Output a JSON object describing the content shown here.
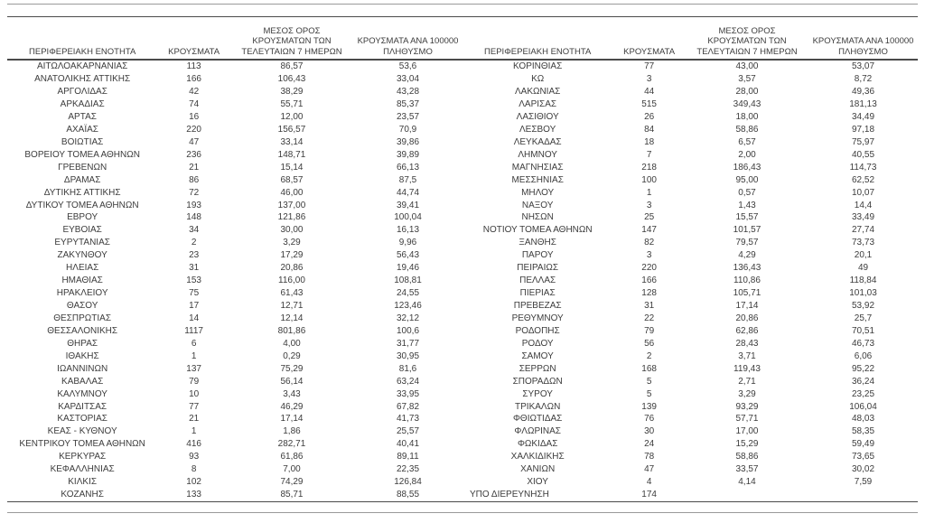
{
  "colors": {
    "text": "#3c3c3c",
    "border": "#4a4a4a",
    "rule": "#9a9a9a",
    "bg": "#ffffff"
  },
  "columns": [
    {
      "id": "region",
      "label": "ΠΕΡΙΦΕΡΕΙΑΚΗ ΕΝΟΤΗΤΑ"
    },
    {
      "id": "cases",
      "label": "ΚΡΟΥΣΜΑΤΑ"
    },
    {
      "id": "avg7",
      "label": "ΜΕΣΟΣ ΟΡΟΣ\nΚΡΟΥΣΜΑΤΩΝ ΤΩΝ\nΤΕΛΕΥΤΑΙΩΝ 7 ΗΜΕΡΩΝ"
    },
    {
      "id": "per100k",
      "label": "ΚΡΟΥΣΜΑΤΑ ΑΝΑ 100000\nΠΛΗΘΥΣΜΟ"
    }
  ],
  "tables": [
    {
      "rows": [
        [
          "ΑΙΤΩΛΟΑΚΑΡΝΑΝΙΑΣ",
          "113",
          "86,57",
          "53,6"
        ],
        [
          "ΑΝΑΤΟΛΙΚΗΣ ΑΤΤΙΚΗΣ",
          "166",
          "106,43",
          "33,04"
        ],
        [
          "ΑΡΓΟΛΙΔΑΣ",
          "42",
          "38,29",
          "43,28"
        ],
        [
          "ΑΡΚΑΔΙΑΣ",
          "74",
          "55,71",
          "85,37"
        ],
        [
          "ΑΡΤΑΣ",
          "16",
          "12,00",
          "23,57"
        ],
        [
          "ΑΧΑΪΑΣ",
          "220",
          "156,57",
          "70,9"
        ],
        [
          "ΒΟΙΩΤΙΑΣ",
          "47",
          "33,14",
          "39,86"
        ],
        [
          "ΒΟΡΕΙΟΥ ΤΟΜΕΑ ΑΘΗΝΩΝ",
          "236",
          "148,71",
          "39,89"
        ],
        [
          "ΓΡΕΒΕΝΩΝ",
          "21",
          "15,14",
          "66,13"
        ],
        [
          "ΔΡΑΜΑΣ",
          "86",
          "68,57",
          "87,5"
        ],
        [
          "ΔΥΤΙΚΗΣ ΑΤΤΙΚΗΣ",
          "72",
          "46,00",
          "44,74"
        ],
        [
          "ΔΥΤΙΚΟΥ ΤΟΜΕΑ ΑΘΗΝΩΝ",
          "193",
          "137,00",
          "39,41"
        ],
        [
          "ΕΒΡΟΥ",
          "148",
          "121,86",
          "100,04"
        ],
        [
          "ΕΥΒΟΙΑΣ",
          "34",
          "30,00",
          "16,13"
        ],
        [
          "ΕΥΡΥΤΑΝΙΑΣ",
          "2",
          "3,29",
          "9,96"
        ],
        [
          "ΖΑΚΥΝΘΟΥ",
          "23",
          "17,29",
          "56,43"
        ],
        [
          "ΗΛΕΙΑΣ",
          "31",
          "20,86",
          "19,46"
        ],
        [
          "ΗΜΑΘΙΑΣ",
          "153",
          "116,00",
          "108,81"
        ],
        [
          "ΗΡΑΚΛΕΙΟΥ",
          "75",
          "61,43",
          "24,55"
        ],
        [
          "ΘΑΣΟΥ",
          "17",
          "12,71",
          "123,46"
        ],
        [
          "ΘΕΣΠΡΩΤΙΑΣ",
          "14",
          "12,14",
          "32,12"
        ],
        [
          "ΘΕΣΣΑΛΟΝΙΚΗΣ",
          "1117",
          "801,86",
          "100,6"
        ],
        [
          "ΘΗΡΑΣ",
          "6",
          "4,00",
          "31,77"
        ],
        [
          "ΙΘΑΚΗΣ",
          "1",
          "0,29",
          "30,95"
        ],
        [
          "ΙΩΑΝΝΙΝΩΝ",
          "137",
          "75,29",
          "81,6"
        ],
        [
          "ΚΑΒΑΛΑΣ",
          "79",
          "56,14",
          "63,24"
        ],
        [
          "ΚΑΛΥΜΝΟΥ",
          "10",
          "3,43",
          "33,95"
        ],
        [
          "ΚΑΡΔΙΤΣΑΣ",
          "77",
          "46,29",
          "67,82"
        ],
        [
          "ΚΑΣΤΟΡΙΑΣ",
          "21",
          "17,14",
          "41,73"
        ],
        [
          "ΚΕΑΣ - ΚΥΘΝΟΥ",
          "1",
          "1,86",
          "25,57"
        ],
        [
          "ΚΕΝΤΡΙΚΟΥ ΤΟΜΕΑ ΑΘΗΝΩΝ",
          "416",
          "282,71",
          "40,41"
        ],
        [
          "ΚΕΡΚΥΡΑΣ",
          "93",
          "61,86",
          "89,11"
        ],
        [
          "ΚΕΦΑΛΛΗΝΙΑΣ",
          "8",
          "7,00",
          "22,35"
        ],
        [
          "ΚΙΛΚΙΣ",
          "102",
          "74,29",
          "126,84"
        ],
        [
          "ΚΟΖΑΝΗΣ",
          "133",
          "85,71",
          "88,55"
        ]
      ],
      "special_rows": []
    },
    {
      "rows": [
        [
          "ΚΟΡΙΝΘΙΑΣ",
          "77",
          "43,00",
          "53,07"
        ],
        [
          "ΚΩ",
          "3",
          "3,57",
          "8,72"
        ],
        [
          "ΛΑΚΩΝΙΑΣ",
          "44",
          "28,00",
          "49,36"
        ],
        [
          "ΛΑΡΙΣΑΣ",
          "515",
          "349,43",
          "181,13"
        ],
        [
          "ΛΑΣΙΘΙΟΥ",
          "26",
          "18,00",
          "34,49"
        ],
        [
          "ΛΕΣΒΟΥ",
          "84",
          "58,86",
          "97,18"
        ],
        [
          "ΛΕΥΚΑΔΑΣ",
          "18",
          "6,57",
          "75,97"
        ],
        [
          "ΛΗΜΝΟΥ",
          "7",
          "2,00",
          "40,55"
        ],
        [
          "ΜΑΓΝΗΣΙΑΣ",
          "218",
          "186,43",
          "114,73"
        ],
        [
          "ΜΕΣΣΗΝΙΑΣ",
          "100",
          "95,00",
          "62,52"
        ],
        [
          "ΜΗΛΟΥ",
          "1",
          "0,57",
          "10,07"
        ],
        [
          "ΝΑΞΟΥ",
          "3",
          "1,43",
          "14,4"
        ],
        [
          "ΝΗΣΩΝ",
          "25",
          "15,57",
          "33,49"
        ],
        [
          "ΝΟΤΙΟΥ ΤΟΜΕΑ ΑΘΗΝΩΝ",
          "147",
          "101,57",
          "27,74"
        ],
        [
          "ΞΑΝΘΗΣ",
          "82",
          "79,57",
          "73,73"
        ],
        [
          "ΠΑΡΟΥ",
          "3",
          "4,29",
          "20,1"
        ],
        [
          "ΠΕΙΡΑΙΩΣ",
          "220",
          "136,43",
          "49"
        ],
        [
          "ΠΕΛΛΑΣ",
          "166",
          "110,86",
          "118,84"
        ],
        [
          "ΠΙΕΡΙΑΣ",
          "128",
          "105,71",
          "101,03"
        ],
        [
          "ΠΡΕΒΕΖΑΣ",
          "31",
          "17,14",
          "53,92"
        ],
        [
          "ΡΕΘΥΜΝΟΥ",
          "22",
          "20,86",
          "25,7"
        ],
        [
          "ΡΟΔΟΠΗΣ",
          "79",
          "62,86",
          "70,51"
        ],
        [
          "ΡΟΔΟΥ",
          "56",
          "28,43",
          "46,73"
        ],
        [
          "ΣΑΜΟΥ",
          "2",
          "3,71",
          "6,06"
        ],
        [
          "ΣΕΡΡΩΝ",
          "168",
          "119,43",
          "95,22"
        ],
        [
          "ΣΠΟΡΑΔΩΝ",
          "5",
          "2,71",
          "36,24"
        ],
        [
          "ΣΥΡΟΥ",
          "5",
          "3,29",
          "23,25"
        ],
        [
          "ΤΡΙΚΑΛΩΝ",
          "139",
          "93,29",
          "106,04"
        ],
        [
          "ΦΘΙΩΤΙΔΑΣ",
          "76",
          "57,71",
          "48,03"
        ],
        [
          "ΦΛΩΡΙΝΑΣ",
          "30",
          "17,00",
          "58,35"
        ],
        [
          "ΦΩΚΙΔΑΣ",
          "24",
          "15,29",
          "59,49"
        ],
        [
          "ΧΑΛΚΙΔΙΚΗΣ",
          "78",
          "58,86",
          "73,65"
        ],
        [
          "ΧΑΝΙΩΝ",
          "47",
          "33,57",
          "30,02"
        ],
        [
          "ΧΙΟΥ",
          "4",
          "4,14",
          "7,59"
        ]
      ],
      "special_rows": [
        [
          "ΥΠΟ ΔΙΕΡΕΥΝΗΣΗ",
          "174",
          "",
          ""
        ]
      ]
    }
  ]
}
